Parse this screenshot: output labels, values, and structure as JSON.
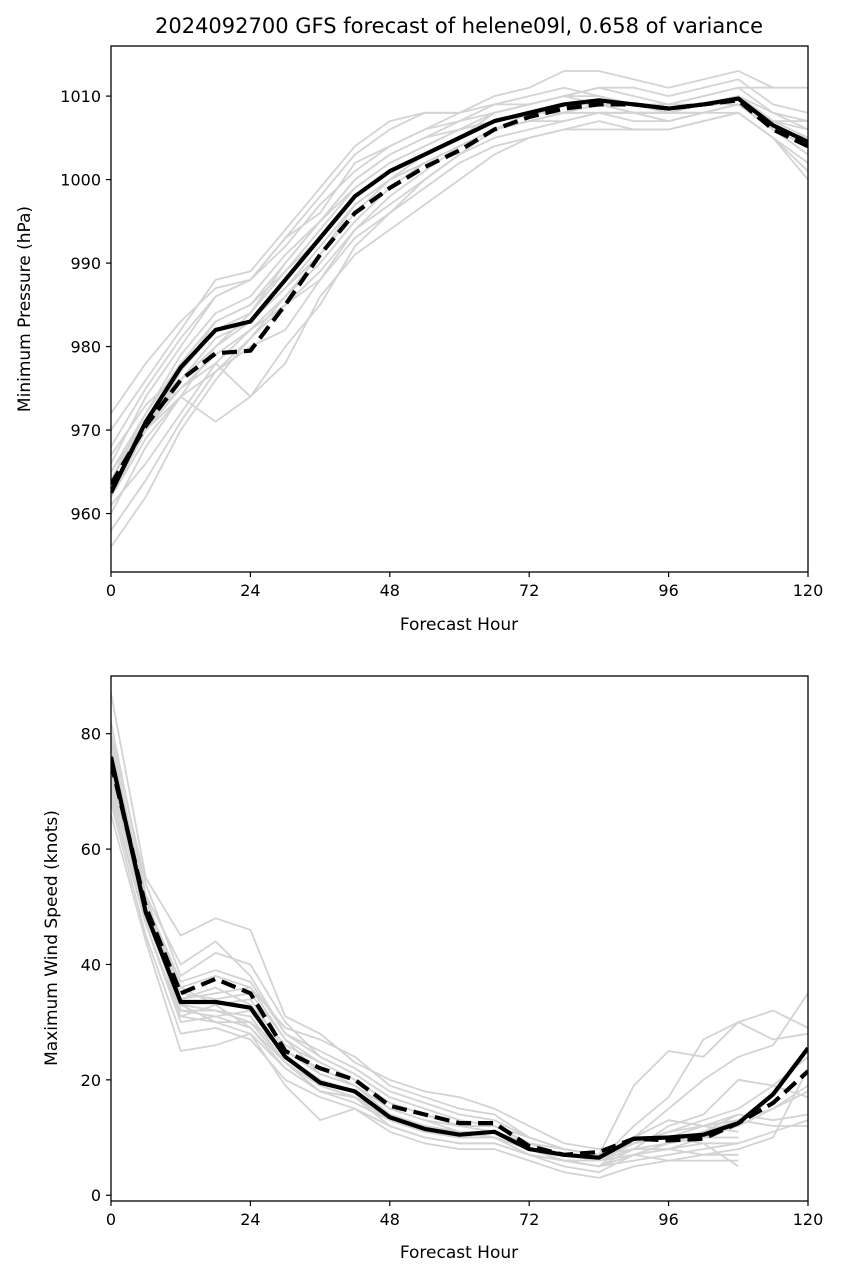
{
  "colors": {
    "ensemble": "#d3d3d3",
    "main": "#000000"
  },
  "chart_data": [
    {
      "type": "line",
      "title": "2024092700 GFS forecast of helene09l, 0.658 of variance",
      "xlabel": "Forecast Hour",
      "ylabel": "Minimum Pressure (hPa)",
      "xlim": [
        0,
        120
      ],
      "ylim": [
        953,
        1016
      ],
      "xticks": [
        0,
        24,
        48,
        72,
        96,
        120
      ],
      "yticks": [
        960,
        970,
        980,
        990,
        1000,
        1010
      ],
      "x": [
        0,
        6,
        12,
        18,
        24,
        30,
        36,
        42,
        48,
        54,
        60,
        66,
        72,
        78,
        84,
        90,
        96,
        102,
        108,
        114,
        120
      ],
      "series": [
        {
          "name": "solid",
          "style": "solid",
          "values": [
            962.5,
            971,
            977.5,
            982,
            983,
            988,
            993,
            998,
            1001,
            1003,
            1005,
            1007,
            1008,
            1009,
            1009.5,
            1009,
            1008.5,
            1009,
            1009.7,
            1006.5,
            1004.5
          ]
        },
        {
          "name": "dashed",
          "style": "dashed",
          "values": [
            963.5,
            970.5,
            976,
            979.2,
            979.5,
            985,
            991,
            996,
            999,
            1001.5,
            1003.5,
            1006,
            1007.5,
            1008.5,
            1009,
            1009,
            1008.5,
            1009,
            1009.5,
            1006,
            1004
          ]
        }
      ],
      "ensemble": [
        [
          956,
          962,
          970,
          976,
          981,
          986,
          991,
          996,
          1000,
          1003,
          1005,
          1008,
          1009,
          1010,
          1011,
          1010,
          1009,
          1009,
          1010,
          1007,
          1005
        ],
        [
          960,
          968,
          974,
          980,
          984,
          990,
          995,
          1000,
          1003,
          1005,
          1007,
          1009,
          1010,
          1011,
          1010,
          1009,
          1008,
          1008,
          1009,
          1007,
          1006
        ],
        [
          964,
          972,
          978,
          983,
          985,
          989,
          994,
          999,
          1002,
          1004,
          1006,
          1008,
          1009,
          1010,
          1009,
          1009,
          1009,
          1010,
          1011,
          1008,
          1007
        ],
        [
          966,
          974,
          980,
          986,
          988,
          993,
          998,
          1003,
          1006,
          1008,
          1008,
          1010,
          1011,
          1013,
          1013,
          1012,
          1011,
          1012,
          1013,
          1011,
          1011
        ],
        [
          968,
          975,
          981,
          986,
          988,
          992,
          997,
          1001,
          1004,
          1006,
          1008,
          1009,
          1009,
          1010,
          1011,
          1011,
          1010,
          1011,
          1012,
          1009,
          1008
        ],
        [
          970,
          976,
          982,
          988,
          989,
          994,
          999,
          1004,
          1007,
          1008,
          1008,
          null,
          null,
          null,
          null,
          null,
          null,
          null,
          null,
          null,
          null
        ],
        [
          972,
          978,
          983,
          987,
          988,
          993,
          996,
          1002,
          1004,
          1006,
          1007,
          1008,
          1009,
          1010,
          1010,
          1009,
          1009,
          1010,
          1011,
          1011,
          null
        ],
        [
          962,
          970,
          976,
          981,
          983,
          987,
          992,
          997,
          1000,
          1002,
          1004,
          1006,
          1007,
          1008,
          1008,
          1007,
          1007,
          1008,
          1009,
          1006,
          1003
        ],
        [
          961,
          966,
          972,
          978,
          982,
          986,
          990,
          995,
          999,
          1002,
          1004,
          1006,
          1007,
          1007,
          1008,
          1008,
          1008,
          1008,
          1009,
          1006,
          1004
        ],
        [
          958,
          964,
          971,
          977,
          981,
          985,
          989,
          994,
          997,
          1000,
          1003,
          1005,
          1006,
          1007,
          1008,
          1008,
          1007,
          1008,
          1008,
          1005,
          1000
        ],
        [
          963,
          970,
          975,
          979,
          982,
          985,
          988,
          993,
          996,
          999,
          1002,
          1004,
          1005,
          1006,
          1007,
          1006,
          1006,
          1007,
          1008,
          1005,
          1002
        ],
        [
          965,
          972,
          979,
          984,
          986,
          991,
          995,
          1000,
          1003,
          1005,
          1006,
          1007,
          1008,
          1008,
          1009,
          1009,
          1009,
          1009,
          1010,
          1008,
          1006
        ],
        [
          967,
          973,
          977,
          982,
          984,
          989,
          993,
          998,
          1001,
          1003,
          1005,
          1007,
          1008,
          1008,
          1008,
          1008,
          1008,
          1009,
          1009,
          1007,
          1007
        ],
        [
          963,
          970,
          974,
          971,
          974,
          978,
          986,
          991,
          994,
          997,
          1000,
          1003,
          1005,
          1006,
          1006,
          1006,
          1006,
          1007,
          1008,
          1005,
          1001
        ],
        [
          964,
          971,
          975,
          978,
          974,
          980,
          985,
          992,
          996,
          1000,
          1003,
          1006,
          1008,
          1009,
          1009,
          1008,
          1008,
          1009,
          1010,
          1006,
          1004
        ],
        [
          962,
          969,
          974,
          977,
          980,
          982,
          988,
          994,
          998,
          1001,
          1004,
          1006,
          1007,
          1008,
          1009,
          1008,
          1007,
          1008,
          1009,
          1006,
          1004
        ],
        [
          965,
          971,
          976,
          980,
          983,
          987,
          991,
          997,
          1000,
          1002,
          1004,
          1006,
          1007,
          1008,
          1009,
          1009,
          1008,
          1009,
          1010,
          1007,
          1005
        ],
        [
          963,
          970,
          977,
          983,
          985,
          990,
          995,
          999,
          1002,
          1004,
          1006,
          1007,
          1008,
          1009,
          1009,
          1008,
          1008,
          1008,
          1009,
          1006,
          1005
        ]
      ]
    },
    {
      "type": "line",
      "title": "",
      "xlabel": "Forecast Hour",
      "ylabel": "Maximum Wind Speed (knots)",
      "xlim": [
        0,
        120
      ],
      "ylim": [
        -1,
        90
      ],
      "xticks": [
        0,
        24,
        48,
        72,
        96,
        120
      ],
      "yticks": [
        0,
        20,
        40,
        60,
        80
      ],
      "x": [
        0,
        6,
        12,
        18,
        24,
        30,
        36,
        42,
        48,
        54,
        60,
        66,
        72,
        78,
        84,
        90,
        96,
        102,
        108,
        114,
        120
      ],
      "series": [
        {
          "name": "solid",
          "style": "solid",
          "values": [
            76,
            49,
            33.5,
            33.5,
            32.5,
            24,
            19.5,
            18,
            13.5,
            11.5,
            10.5,
            11,
            8,
            7,
            6.5,
            9.8,
            10,
            10.5,
            12.5,
            17.5,
            25.5
          ]
        },
        {
          "name": "dashed",
          "style": "dashed",
          "values": [
            75,
            50,
            35,
            37.5,
            35,
            25,
            22,
            20,
            15.5,
            14,
            12.5,
            12.5,
            8.5,
            7,
            7.5,
            9.8,
            9.5,
            9.8,
            12.5,
            16,
            21.5
          ]
        }
      ],
      "ensemble": [
        [
          87,
          55,
          45,
          48,
          46,
          31,
          28,
          23,
          20,
          18,
          17,
          15,
          12,
          9,
          8,
          9,
          10,
          12,
          14,
          13,
          14
        ],
        [
          82,
          52,
          40,
          44,
          38,
          28,
          25,
          22,
          18,
          16,
          14,
          13,
          10,
          8,
          7,
          19,
          25,
          24,
          30,
          32,
          29
        ],
        [
          80,
          54,
          38,
          42,
          40,
          30,
          24,
          21,
          17,
          15,
          13,
          12,
          9,
          7,
          6,
          12,
          17,
          27,
          30,
          27,
          28
        ],
        [
          78,
          50,
          36,
          38,
          36,
          27,
          23,
          20,
          16,
          14,
          12,
          11,
          8,
          6,
          5,
          10,
          15,
          20,
          24,
          26,
          35
        ],
        [
          75,
          48,
          33,
          32,
          30,
          25,
          21,
          19,
          15,
          13,
          11,
          10,
          8,
          6,
          5,
          8,
          12,
          14,
          20,
          19,
          17
        ],
        [
          72,
          50,
          31,
          30,
          28,
          22,
          18,
          17,
          14,
          12,
          11,
          10,
          7,
          5,
          4,
          7,
          9,
          11,
          13,
          12,
          12
        ],
        [
          70,
          47,
          30,
          31,
          32,
          24,
          20,
          18,
          14,
          12,
          10,
          11,
          8,
          7,
          6,
          9,
          11,
          12,
          13,
          15,
          19
        ],
        [
          68,
          45,
          28,
          29,
          27,
          20,
          17,
          15,
          12,
          10,
          9,
          9,
          7,
          6,
          5,
          6,
          7,
          8,
          9,
          11,
          13
        ],
        [
          66,
          44,
          25,
          26,
          28,
          19,
          13,
          15,
          11,
          9,
          8,
          8,
          6,
          4,
          3,
          5,
          6,
          7,
          8,
          10,
          22
        ],
        [
          73,
          52,
          34,
          35,
          36,
          29,
          27,
          24,
          19,
          17,
          15,
          14,
          10,
          8,
          7,
          10,
          13,
          12,
          11,
          null,
          null
        ],
        [
          77,
          51,
          36,
          33,
          34,
          25,
          22,
          19,
          15,
          13,
          12,
          12,
          9,
          7,
          6,
          8,
          9,
          10,
          10,
          null,
          null
        ],
        [
          71,
          49,
          32,
          32,
          31,
          23,
          19,
          17,
          13,
          11,
          10,
          10,
          8,
          6,
          6,
          7,
          8,
          9,
          9,
          null,
          null
        ],
        [
          74,
          50,
          34,
          36,
          33,
          26,
          23,
          20,
          16,
          14,
          12,
          12,
          9,
          8,
          7,
          8,
          8,
          7,
          7,
          null,
          null
        ],
        [
          69,
          47,
          31,
          33,
          29,
          22,
          18,
          16,
          13,
          11,
          10,
          10,
          8,
          6,
          5,
          7,
          6,
          6,
          6,
          null,
          null
        ],
        [
          76,
          49,
          35,
          34,
          35,
          27,
          21,
          19,
          14,
          12,
          11,
          11,
          9,
          7,
          6,
          8,
          9,
          11,
          14,
          null,
          null
        ],
        [
          72,
          48,
          33,
          30,
          30,
          23,
          18,
          17,
          12,
          10,
          9,
          9,
          7,
          6,
          6,
          9,
          10,
          9,
          5,
          null,
          null
        ],
        [
          79,
          51,
          37,
          39,
          37,
          28,
          24,
          21,
          17,
          15,
          13,
          12,
          10,
          8,
          7,
          9,
          11,
          13,
          15,
          19,
          24
        ],
        [
          74,
          49,
          32,
          31,
          29,
          23,
          19,
          17,
          13,
          11,
          10,
          10,
          8,
          6,
          5,
          7,
          8,
          10,
          12,
          15,
          18
        ]
      ]
    }
  ]
}
